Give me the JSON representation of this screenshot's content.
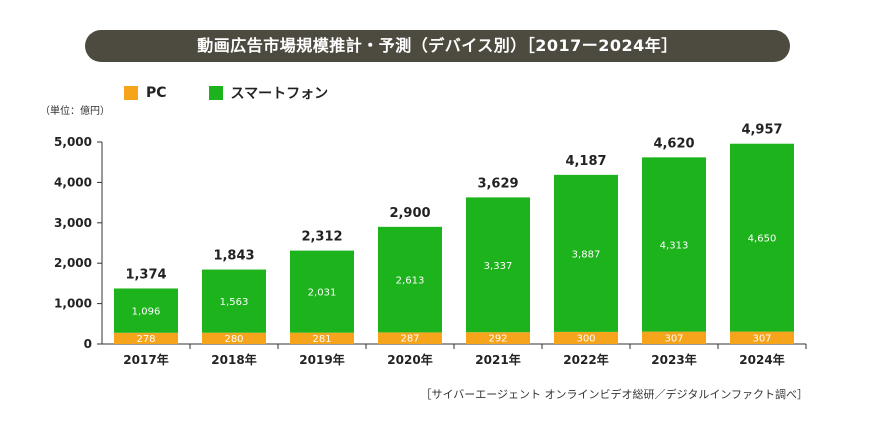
{
  "title": "動画広告市場規模推計・予測（デバイス別）［2017ー2024年］",
  "unit_note": "（単位：億円）",
  "source_note": "［サイバーエージェント オンラインビデオ総研／デジタルインファクト調べ］",
  "colors": {
    "pc": "#f5a41c",
    "smartphone": "#1cb31c",
    "title_bg": "#4d4a40"
  },
  "chart_data": {
    "type": "bar",
    "stacked": true,
    "title": "動画広告市場規模推計・予測（デバイス別）［2017ー2024年］",
    "categories": [
      "2017年",
      "2018年",
      "2019年",
      "2020年",
      "2021年",
      "2022年",
      "2023年",
      "2024年"
    ],
    "series": [
      {
        "name": "PC",
        "values": [
          278,
          280,
          281,
          287,
          292,
          300,
          307,
          307
        ]
      },
      {
        "name": "スマートフォン",
        "values": [
          1096,
          1563,
          2031,
          2613,
          3337,
          3887,
          4313,
          4650
        ]
      }
    ],
    "totals": [
      1374,
      1843,
      2312,
      2900,
      3629,
      4187,
      4620,
      4957
    ],
    "total_labels": [
      "1,374",
      "1,843",
      "2,312",
      "2,900",
      "3,629",
      "4,187",
      "4,620",
      "4,957"
    ],
    "pc_labels": [
      "278",
      "280",
      "281",
      "287",
      "292",
      "300",
      "307",
      "307"
    ],
    "smartphone_labels": [
      "1,096",
      "1,563",
      "2,031",
      "2,613",
      "3,337",
      "3,887",
      "4,313",
      "4,650"
    ],
    "ylim": [
      0,
      5000
    ],
    "yticks": [
      0,
      1000,
      2000,
      3000,
      4000,
      5000
    ],
    "ytick_labels": [
      "0",
      "1,000",
      "2,000",
      "3,000",
      "4,000",
      "5,000"
    ],
    "legend_position": "top-left",
    "grid": false
  }
}
